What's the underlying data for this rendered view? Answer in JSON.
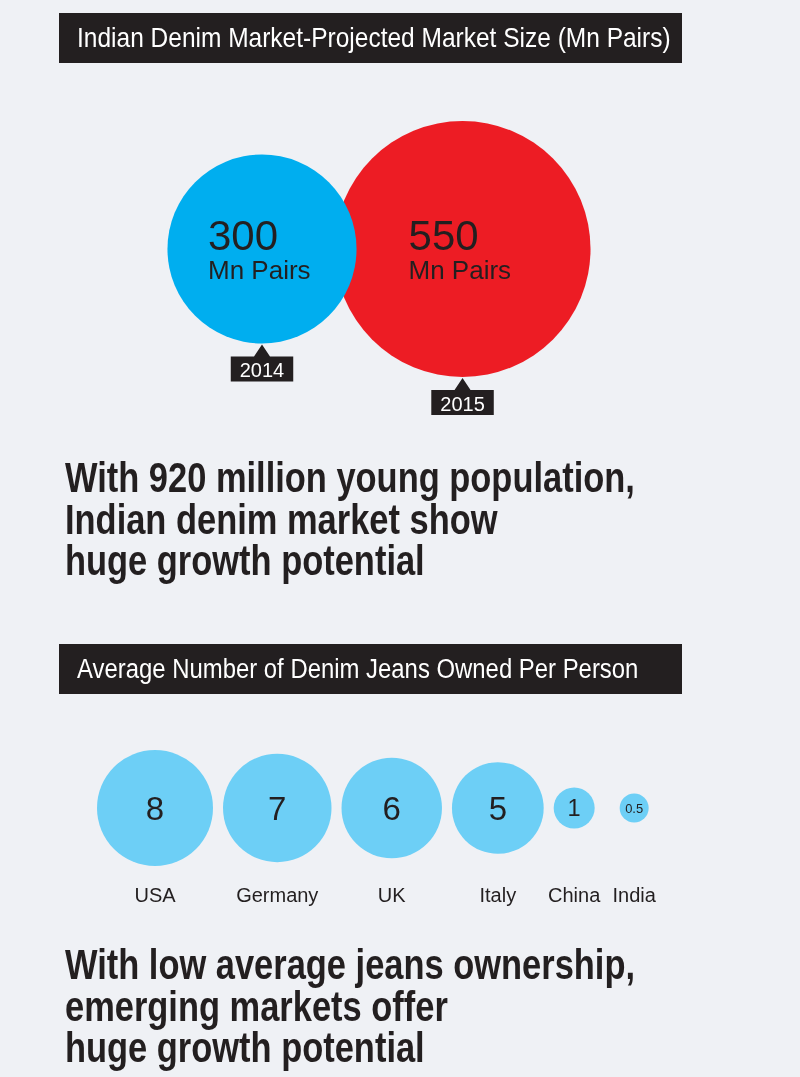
{
  "chart_data": [
    {
      "type": "other",
      "title": "Indian Denim Market-Projected Market Size (Mn Pairs)",
      "categories": [
        "2014",
        "2015"
      ],
      "values": [
        300,
        550
      ],
      "value_labels": [
        "300 Mn Pairs",
        "550 Mn Pairs"
      ],
      "colors": [
        "#00aeef",
        "#ed1c24"
      ],
      "annotations": [
        "With 920 million young population,\nIndian denim market show\nhuge growth potential"
      ]
    },
    {
      "type": "other",
      "title": "Average Number of Denim Jeans Owned Per Person",
      "categories": [
        "USA",
        "Germany",
        "UK",
        "Italy",
        "China",
        "India"
      ],
      "values": [
        8,
        7,
        6,
        5,
        1,
        0.5
      ],
      "data_labels": true,
      "color": "#6dcff6",
      "annotations": [
        "With low average jeans ownership,\nemerging markets offer\nhuge growth potential"
      ]
    }
  ]
}
